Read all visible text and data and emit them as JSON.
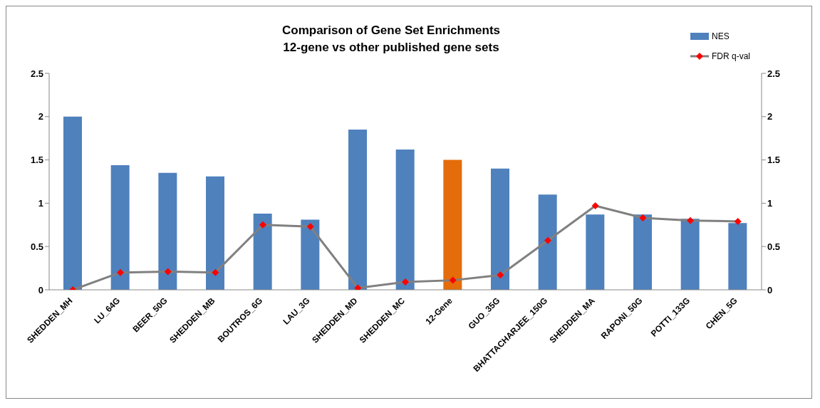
{
  "chart_data": {
    "type": "bar",
    "title": "Comparison of Gene Set Enrichments\n12-gene vs other published gene sets",
    "categories": [
      "SHEDDEN_MH",
      "LU_64G",
      "BEER_50G",
      "SHEDDEN_MB",
      "BOUTROS_6G",
      "LAU_3G",
      "SHEDDEN_MD",
      "SHEDDEN_MC",
      "12-Gene",
      "GUO_35G",
      "BHATTACHARJEE_150G",
      "SHEDDEN_MA",
      "RAPONI_50G",
      "POTTI_133G",
      "CHEN_5G"
    ],
    "series": [
      {
        "name": "NES",
        "color": "#4f81bd",
        "colors": [
          "#4f81bd",
          "#4f81bd",
          "#4f81bd",
          "#4f81bd",
          "#4f81bd",
          "#4f81bd",
          "#4f81bd",
          "#4f81bd",
          "#e46c0a",
          "#4f81bd",
          "#4f81bd",
          "#4f81bd",
          "#4f81bd",
          "#4f81bd",
          "#4f81bd"
        ],
        "values": [
          2.0,
          1.44,
          1.35,
          1.31,
          0.88,
          0.81,
          1.85,
          1.62,
          1.5,
          1.4,
          1.1,
          0.87,
          0.87,
          0.82,
          0.77
        ]
      },
      {
        "name": "FDR q-val",
        "type": "line",
        "axis": "y2",
        "color": "#808080",
        "colors": [
          "#ff0000",
          "#ff0000",
          "#ff0000",
          "#ff0000",
          "#ff0000",
          "#ff0000",
          "#ff0000",
          "#ff0000",
          "#ff0000",
          "#ff0000",
          "#ff0000",
          "#ff0000",
          "#ff0000",
          "#ff0000",
          "#ff0000"
        ],
        "values": [
          0.0,
          0.2,
          0.21,
          0.2,
          0.75,
          0.73,
          0.02,
          0.09,
          0.11,
          0.17,
          0.57,
          0.97,
          0.83,
          0.8,
          0.79
        ]
      }
    ],
    "ylim": [
      0,
      2.5
    ],
    "yticks": [
      0,
      0.5,
      1,
      1.5,
      2,
      2.5
    ],
    "y2lim": [
      0,
      2.5
    ],
    "y2ticks": [
      0,
      0.5,
      1,
      1.5,
      2,
      2.5
    ],
    "grid": false,
    "legend": "top right",
    "marker": "diamond",
    "line_style": "solid"
  }
}
